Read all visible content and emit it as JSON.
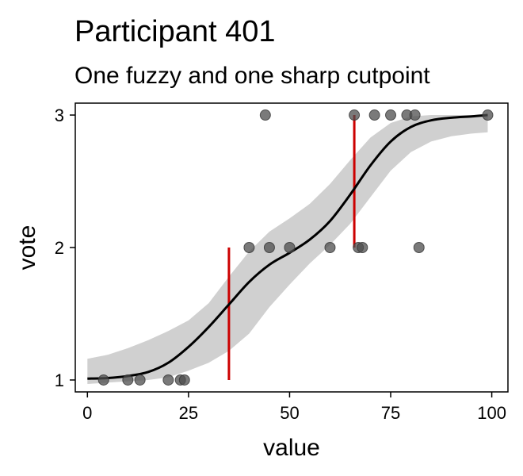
{
  "chart_data": {
    "type": "scatter",
    "title": "Participant 401",
    "subtitle": "One fuzzy and one sharp cutpoint",
    "xlabel": "value",
    "ylabel": "vote",
    "xlim": [
      -3,
      104
    ],
    "ylim": [
      0.91,
      3.09
    ],
    "x_ticks": [
      0,
      25,
      50,
      75,
      100
    ],
    "y_ticks": [
      1,
      2,
      3
    ],
    "grid": false,
    "legend": "none",
    "colors": {
      "points": "#4d4d4d",
      "curve": "#000000",
      "band": "#d0d0d0",
      "cutpoints": "#cc0000"
    },
    "points": [
      {
        "x": 4,
        "y": 1
      },
      {
        "x": 10,
        "y": 1
      },
      {
        "x": 13,
        "y": 1
      },
      {
        "x": 20,
        "y": 1
      },
      {
        "x": 23,
        "y": 1
      },
      {
        "x": 24,
        "y": 1
      },
      {
        "x": 40,
        "y": 2
      },
      {
        "x": 44,
        "y": 3
      },
      {
        "x": 45,
        "y": 2
      },
      {
        "x": 50,
        "y": 2
      },
      {
        "x": 60,
        "y": 2
      },
      {
        "x": 66,
        "y": 3
      },
      {
        "x": 67,
        "y": 2
      },
      {
        "x": 68,
        "y": 2
      },
      {
        "x": 71,
        "y": 3
      },
      {
        "x": 75,
        "y": 3
      },
      {
        "x": 79,
        "y": 3
      },
      {
        "x": 81,
        "y": 3
      },
      {
        "x": 82,
        "y": 2
      },
      {
        "x": 99,
        "y": 3
      }
    ],
    "curve": {
      "x": [
        0,
        5,
        10,
        15,
        20,
        25,
        30,
        35,
        40,
        45,
        50,
        55,
        60,
        65,
        70,
        75,
        80,
        85,
        90,
        95,
        99
      ],
      "y": [
        1.01,
        1.015,
        1.03,
        1.06,
        1.13,
        1.25,
        1.4,
        1.57,
        1.74,
        1.87,
        1.96,
        2.06,
        2.2,
        2.4,
        2.62,
        2.8,
        2.91,
        2.96,
        2.98,
        2.99,
        3.0
      ]
    },
    "band": {
      "x": [
        0,
        5,
        10,
        15,
        20,
        25,
        30,
        35,
        40,
        45,
        50,
        55,
        60,
        65,
        70,
        75,
        80,
        85,
        90,
        95,
        99
      ],
      "lower": [
        0.97,
        0.98,
        0.99,
        1.0,
        1.02,
        1.07,
        1.13,
        1.22,
        1.35,
        1.55,
        1.72,
        1.88,
        2.02,
        2.18,
        2.38,
        2.58,
        2.72,
        2.8,
        2.84,
        2.86,
        2.87
      ],
      "upper": [
        1.16,
        1.19,
        1.24,
        1.3,
        1.37,
        1.45,
        1.58,
        1.78,
        1.97,
        2.12,
        2.22,
        2.33,
        2.48,
        2.66,
        2.83,
        2.94,
        2.99,
        3.0,
        3.0,
        3.0,
        3.0
      ]
    },
    "cutpoints": [
      {
        "x": 35,
        "y_from": 1,
        "y_to": 2
      },
      {
        "x": 66,
        "y_from": 2,
        "y_to": 3
      }
    ]
  }
}
